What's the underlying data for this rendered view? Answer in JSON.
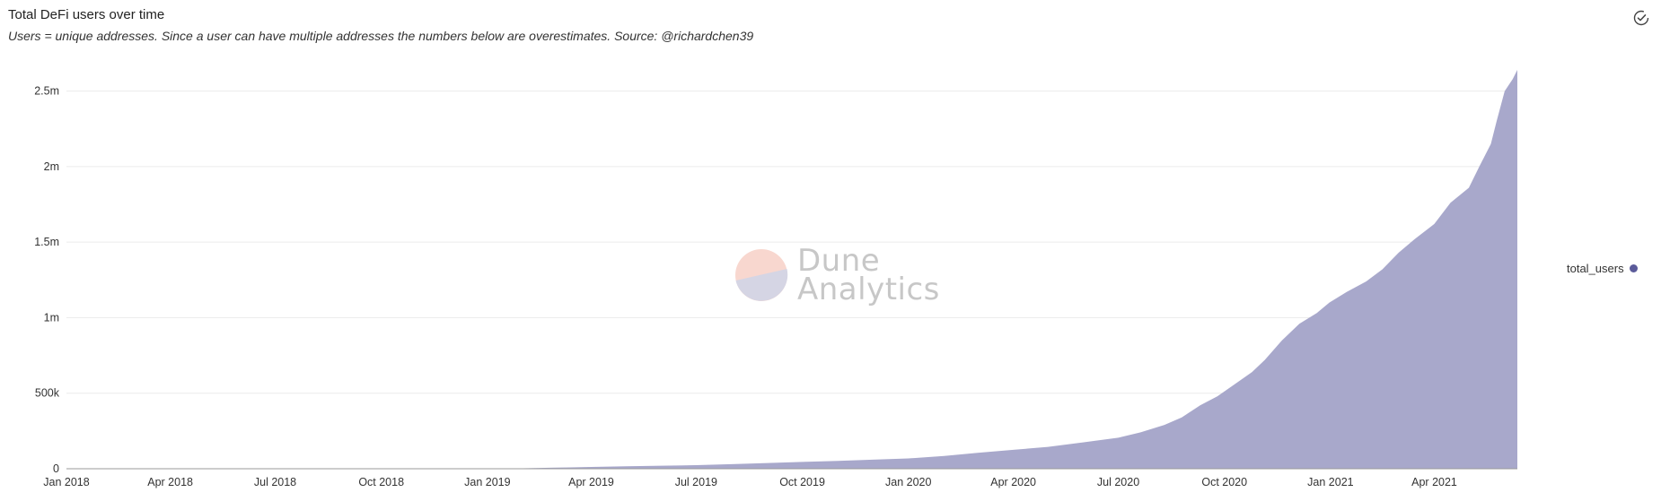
{
  "header": {
    "title": "Total DeFi users over time",
    "subtitle": "Users = unique addresses. Since a user can have multiple addresses the numbers below are overestimates. Source: @richardchen39"
  },
  "icons": {
    "refresh": "check-circle-icon"
  },
  "watermark": {
    "line1": "Dune",
    "line2": "Analytics"
  },
  "chart_data": {
    "type": "area",
    "series": [
      {
        "name": "total_users",
        "color": "#a8a8cb",
        "marker_color": "#5b5b9a",
        "points": [
          [
            "2018-01-01",
            0
          ],
          [
            "2018-04-01",
            0
          ],
          [
            "2018-07-01",
            0
          ],
          [
            "2018-10-01",
            0
          ],
          [
            "2019-01-01",
            1000
          ],
          [
            "2019-02-01",
            3000
          ],
          [
            "2019-03-01",
            7000
          ],
          [
            "2019-04-01",
            12000
          ],
          [
            "2019-05-01",
            16000
          ],
          [
            "2019-06-01",
            20000
          ],
          [
            "2019-07-01",
            24000
          ],
          [
            "2019-08-01",
            30000
          ],
          [
            "2019-09-01",
            38000
          ],
          [
            "2019-10-01",
            45000
          ],
          [
            "2019-11-01",
            52000
          ],
          [
            "2019-12-01",
            60000
          ],
          [
            "2020-01-01",
            68000
          ],
          [
            "2020-02-01",
            85000
          ],
          [
            "2020-03-01",
            105000
          ],
          [
            "2020-04-01",
            125000
          ],
          [
            "2020-05-01",
            145000
          ],
          [
            "2020-06-01",
            175000
          ],
          [
            "2020-07-01",
            205000
          ],
          [
            "2020-07-20",
            240000
          ],
          [
            "2020-08-10",
            290000
          ],
          [
            "2020-08-25",
            340000
          ],
          [
            "2020-09-10",
            420000
          ],
          [
            "2020-09-25",
            480000
          ],
          [
            "2020-10-10",
            560000
          ],
          [
            "2020-10-25",
            640000
          ],
          [
            "2020-11-05",
            720000
          ],
          [
            "2020-11-20",
            850000
          ],
          [
            "2020-12-05",
            960000
          ],
          [
            "2020-12-20",
            1030000
          ],
          [
            "2020-12-31",
            1100000
          ],
          [
            "2021-01-15",
            1170000
          ],
          [
            "2021-02-01",
            1240000
          ],
          [
            "2021-02-15",
            1320000
          ],
          [
            "2021-03-01",
            1430000
          ],
          [
            "2021-03-15",
            1520000
          ],
          [
            "2021-04-01",
            1620000
          ],
          [
            "2021-04-15",
            1760000
          ],
          [
            "2021-05-01",
            1860000
          ],
          [
            "2021-05-10",
            2000000
          ],
          [
            "2021-05-20",
            2150000
          ],
          [
            "2021-05-25",
            2300000
          ],
          [
            "2021-06-01",
            2500000
          ],
          [
            "2021-06-08",
            2580000
          ],
          [
            "2021-06-12",
            2640000
          ]
        ]
      }
    ],
    "x_ticks": [
      "Jan 2018",
      "Apr 2018",
      "Jul 2018",
      "Oct 2018",
      "Jan 2019",
      "Apr 2019",
      "Jul 2019",
      "Oct 2019",
      "Jan 2020",
      "Apr 2020",
      "Jul 2020",
      "Oct 2020",
      "Jan 2021",
      "Apr 2021"
    ],
    "x_tick_dates": [
      "2018-01-01",
      "2018-04-01",
      "2018-07-01",
      "2018-10-01",
      "2019-01-01",
      "2019-04-01",
      "2019-07-01",
      "2019-10-01",
      "2020-01-01",
      "2020-04-01",
      "2020-07-01",
      "2020-10-01",
      "2021-01-01",
      "2021-04-01"
    ],
    "y_ticks": [
      {
        "label": "0",
        "value": 0
      },
      {
        "label": "500k",
        "value": 500000
      },
      {
        "label": "1m",
        "value": 1000000
      },
      {
        "label": "1.5m",
        "value": 1500000
      },
      {
        "label": "2m",
        "value": 2000000
      },
      {
        "label": "2.5m",
        "value": 2500000
      }
    ],
    "xlim": [
      "2018-01-01",
      "2021-06-12"
    ],
    "ylim": [
      0,
      2640000
    ],
    "grid": true,
    "legend": "right"
  }
}
